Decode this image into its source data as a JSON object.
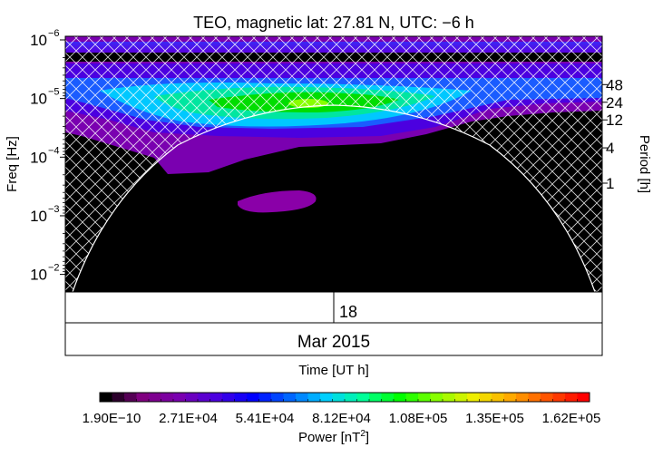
{
  "chart_data": {
    "type": "heatmap",
    "title": "TEO, magnetic lat:   27.81 N, UTC:  −6 h",
    "ylabel": "Freq [Hz]",
    "y2label": "Period [h]",
    "xlabel": "Time [UT h]",
    "y_scale": "log",
    "y_reversed": true,
    "y_ticks": [
      {
        "value": 1e-06,
        "mant": "10",
        "exp": "−6"
      },
      {
        "value": 1e-05,
        "mant": "10",
        "exp": "−5"
      },
      {
        "value": 0.0001,
        "mant": "10",
        "exp": "−4"
      },
      {
        "value": 0.001,
        "mant": "10",
        "exp": "−3"
      },
      {
        "value": 0.01,
        "mant": "10",
        "exp": "−2"
      }
    ],
    "period_ticks": [
      {
        "hours": 48,
        "label": "48"
      },
      {
        "hours": 24,
        "label": "24"
      },
      {
        "hours": 12,
        "label": "12"
      },
      {
        "hours": 4,
        "label": "4"
      },
      {
        "hours": 1,
        "label": "1"
      }
    ],
    "day_label": "18",
    "month_label": "Mar 2015",
    "colorbar": {
      "label": "Power [nT",
      "label_exp": "2",
      "label_end": "]",
      "min": 1.9e-10,
      "max": 162000.0,
      "tick_labels": [
        "1.90E−10",
        "2.71E+04",
        "5.41E+04",
        "8.12E+04",
        "1.08E+05",
        "1.35E+05",
        "1.62E+05"
      ],
      "colors": [
        "#000000",
        "#800080",
        "#7a00b0",
        "#4b00e0",
        "#0000ff",
        "#0066ff",
        "#00d0ff",
        "#00ff99",
        "#00ff00",
        "#88ff00",
        "#eeee00",
        "#ffaa00",
        "#ff5500",
        "#ff0000"
      ]
    },
    "power_regions": [
      {
        "band": "48 h",
        "level": "blue / cyan",
        "value_range": [
          40000,
          81200
        ]
      },
      {
        "band": "24 h",
        "level": "cyan / green peak",
        "value_range": [
          54100,
          108000
        ]
      },
      {
        "band": "12 h",
        "level": "purple",
        "value_range": [
          5000,
          27100
        ]
      },
      {
        "band": "4 h",
        "level": "purple patch",
        "value_range": [
          5000,
          20000
        ]
      }
    ],
    "cone_of_influence": "hatched"
  }
}
